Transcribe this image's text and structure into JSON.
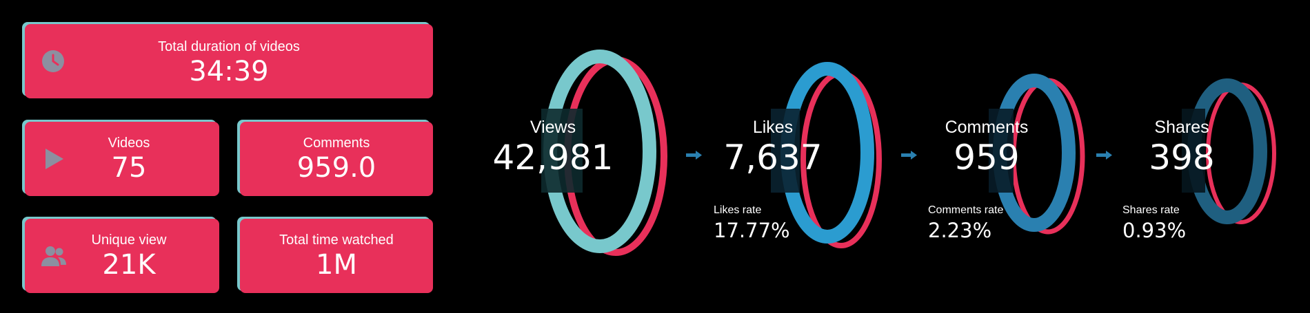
{
  "colors": {
    "card_background": "#e8305a",
    "card_shadow": "#78c8cc",
    "icon_color": "#8c8fa0",
    "ring_red": "#e8305a",
    "ring_views": "#78c8cc",
    "ring_likes": "#2b9cd0",
    "ring_comments": "#2a80b0",
    "ring_shares": "#1f5f80",
    "arrow": "#2a80b0"
  },
  "kpis": {
    "duration": {
      "label": "Total duration of videos",
      "value": "34:39",
      "icon": "clock-icon"
    },
    "videos": {
      "label": "Videos",
      "value": "75",
      "icon": "play-icon"
    },
    "comments": {
      "label": "Comments",
      "value": "959.0"
    },
    "unique_view": {
      "label": "Unique view",
      "value": "21K",
      "icon": "users-icon"
    },
    "time_watched": {
      "label": "Total time watched",
      "value": "1M"
    }
  },
  "funnel": {
    "views": {
      "title": "Views",
      "value": "42,981"
    },
    "likes": {
      "title": "Likes",
      "value": "7,637",
      "rate_label": "Likes rate",
      "rate_value": "17.77%"
    },
    "comments": {
      "title": "Comments",
      "value": "959",
      "rate_label": "Comments rate",
      "rate_value": "2.23%"
    },
    "shares": {
      "title": "Shares",
      "value": "398",
      "rate_label": "Shares rate",
      "rate_value": "0.93%"
    }
  }
}
